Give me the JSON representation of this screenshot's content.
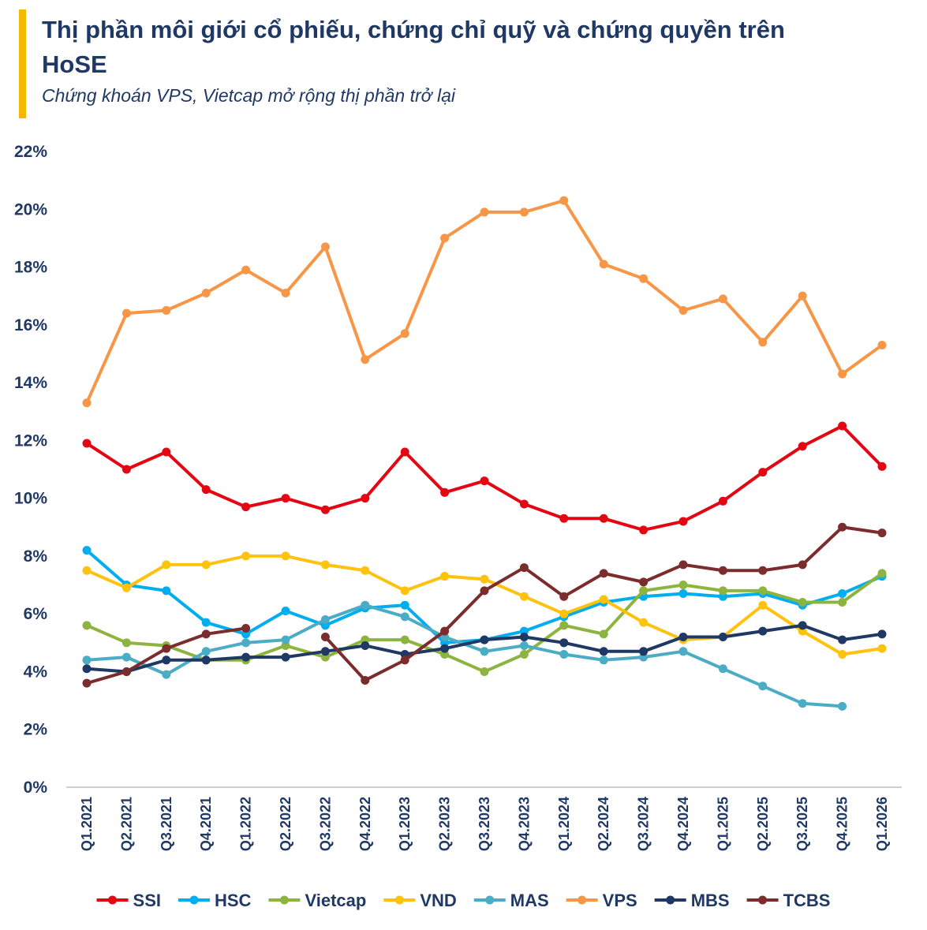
{
  "title": "Thị phần môi giới cổ phiếu, chứng chỉ quỹ và chứng quyền trên HoSE",
  "subtitle": "Chứng khoán VPS, Vietcap mở rộng thị phần trở lại",
  "colors": {
    "accent": "#F5B800",
    "text": "#1F3864"
  },
  "chart_data": {
    "type": "line",
    "title": "Thị phần môi giới cổ phiếu, chứng chỉ quỹ và chứng quyền trên HoSE",
    "subtitle": "Chứng khoán VPS, Vietcap mở rộng thị phần trở lại",
    "xlabel": "",
    "ylabel": "",
    "ylim": [
      0,
      22
    ],
    "y_ticks": [
      "0%",
      "2%",
      "4%",
      "6%",
      "8%",
      "10%",
      "12%",
      "14%",
      "16%",
      "18%",
      "20%",
      "22%"
    ],
    "y_tick_values": [
      0,
      2,
      4,
      6,
      8,
      10,
      12,
      14,
      16,
      18,
      20,
      22
    ],
    "grid": false,
    "legend_position": "bottom",
    "categories": [
      "Q1.2021",
      "Q2.2021",
      "Q3.2021",
      "Q4.2021",
      "Q1.2022",
      "Q2.2022",
      "Q3.2022",
      "Q4.2022",
      "Q1.2023",
      "Q2.2023",
      "Q3.2023",
      "Q4.2023",
      "Q1.2024",
      "Q2.2024",
      "Q3.2024",
      "Q4.2024",
      "Q1.2025",
      "Q2.2025",
      "Q3.2025",
      "Q4.2025",
      "Q1.2026"
    ],
    "series": [
      {
        "name": "SSI",
        "color": "#E30613",
        "values": [
          11.9,
          11.0,
          11.6,
          10.3,
          9.7,
          10.0,
          9.6,
          10.0,
          11.6,
          10.2,
          10.6,
          9.8,
          9.3,
          9.3,
          8.9,
          9.2,
          9.9,
          10.9,
          11.8,
          12.5,
          11.1
        ]
      },
      {
        "name": "HSC",
        "color": "#00AEEF",
        "values": [
          8.2,
          7.0,
          6.8,
          5.7,
          5.3,
          6.1,
          5.6,
          6.2,
          6.3,
          5.0,
          5.1,
          5.4,
          5.9,
          6.4,
          6.6,
          6.7,
          6.6,
          6.7,
          6.3,
          6.7,
          7.3
        ]
      },
      {
        "name": "Vietcap",
        "color": "#8DB43E",
        "values": [
          5.6,
          5.0,
          4.9,
          4.4,
          4.4,
          4.9,
          4.5,
          5.1,
          5.1,
          4.6,
          4.0,
          4.6,
          5.6,
          5.3,
          6.8,
          7.0,
          6.8,
          6.8,
          6.4,
          6.4,
          7.4
        ]
      },
      {
        "name": "VND",
        "color": "#FFC20E",
        "values": [
          7.5,
          6.9,
          7.7,
          7.7,
          8.0,
          8.0,
          7.7,
          7.5,
          6.8,
          7.3,
          7.2,
          6.6,
          6.0,
          6.5,
          5.7,
          5.1,
          5.2,
          6.3,
          5.4,
          4.6,
          4.8
        ]
      },
      {
        "name": "MAS",
        "color": "#4BACC6",
        "values": [
          4.4,
          4.5,
          3.9,
          4.7,
          5.0,
          5.1,
          5.8,
          6.3,
          5.9,
          5.2,
          4.7,
          4.9,
          4.6,
          4.4,
          4.5,
          4.7,
          4.1,
          3.5,
          2.9,
          2.8,
          null
        ]
      },
      {
        "name": "VPS",
        "color": "#F79646",
        "values": [
          13.3,
          16.4,
          16.5,
          17.1,
          17.9,
          17.1,
          18.7,
          14.8,
          15.7,
          19.0,
          19.9,
          19.9,
          20.3,
          18.1,
          17.6,
          16.5,
          16.9,
          15.4,
          17.0,
          14.3,
          15.3
        ]
      },
      {
        "name": "MBS",
        "color": "#1F3864",
        "values": [
          4.1,
          4.0,
          4.4,
          4.4,
          4.5,
          4.5,
          4.7,
          4.9,
          4.6,
          4.8,
          5.1,
          5.2,
          5.0,
          4.7,
          4.7,
          5.2,
          5.2,
          5.4,
          5.6,
          5.1,
          5.3
        ]
      },
      {
        "name": "TCBS",
        "color": "#7B2C2C",
        "values": [
          3.6,
          4.0,
          4.8,
          5.3,
          5.5,
          null,
          5.2,
          3.7,
          4.4,
          5.4,
          6.8,
          7.6,
          6.6,
          7.4,
          7.1,
          7.7,
          7.5,
          7.5,
          7.7,
          9.0,
          8.8
        ]
      }
    ]
  }
}
